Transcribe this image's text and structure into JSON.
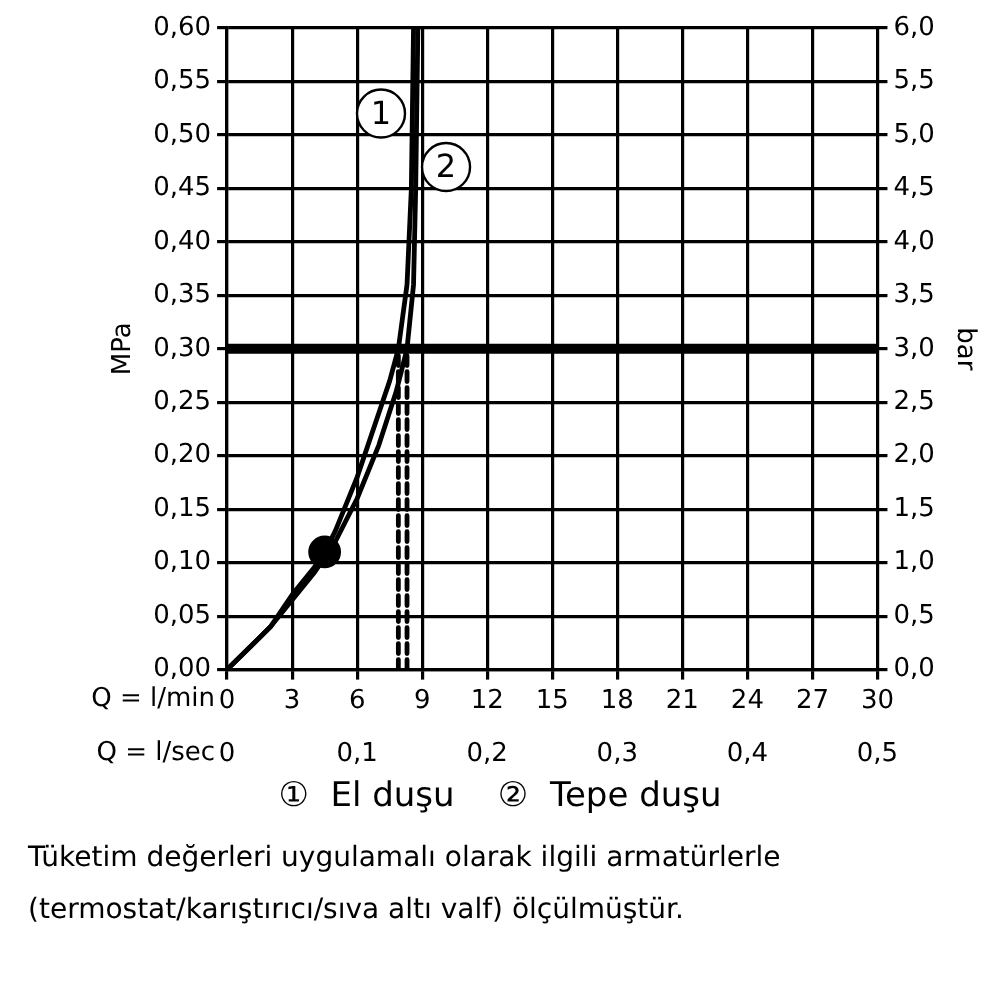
{
  "chart_data": {
    "type": "line",
    "ylabel": "MPa",
    "y2label": "bar",
    "xlabel": "Q = l/min",
    "x2label": "Q = l/sec",
    "xlim": [
      0,
      30
    ],
    "xticks": [
      0,
      3,
      6,
      9,
      12,
      15,
      18,
      21,
      24,
      27,
      30
    ],
    "x2lim": [
      0,
      0.5
    ],
    "x2ticks": [
      0,
      {
        "value": 0.1,
        "label": "0,1"
      },
      {
        "value": 0.2,
        "label": "0,2"
      },
      {
        "value": 0.3,
        "label": "0,3"
      },
      {
        "value": 0.4,
        "label": "0,4"
      },
      {
        "value": 0.5,
        "label": "0,5"
      }
    ],
    "ylim": [
      0,
      0.6
    ],
    "yticks": [
      {
        "value": 0,
        "label": "0,00"
      },
      {
        "value": 0.05,
        "label": "0,05"
      },
      {
        "value": 0.1,
        "label": "0,10"
      },
      {
        "value": 0.15,
        "label": "0,15"
      },
      {
        "value": 0.2,
        "label": "0,20"
      },
      {
        "value": 0.25,
        "label": "0,25"
      },
      {
        "value": 0.3,
        "label": "0,30"
      },
      {
        "value": 0.35,
        "label": "0,35"
      },
      {
        "value": 0.4,
        "label": "0,40"
      },
      {
        "value": 0.45,
        "label": "0,45"
      },
      {
        "value": 0.5,
        "label": "0,50"
      },
      {
        "value": 0.55,
        "label": "0,55"
      },
      {
        "value": 0.6,
        "label": "0,60"
      }
    ],
    "y2lim": [
      0,
      6
    ],
    "y2ticks": [
      {
        "value": 0,
        "label": "0,0"
      },
      {
        "value": 0.5,
        "label": "0,5"
      },
      {
        "value": 1,
        "label": "1,0"
      },
      {
        "value": 1.5,
        "label": "1,5"
      },
      {
        "value": 2,
        "label": "2,0"
      },
      {
        "value": 2.5,
        "label": "2,5"
      },
      {
        "value": 3,
        "label": "3,0"
      },
      {
        "value": 3.5,
        "label": "3,5"
      },
      {
        "value": 4,
        "label": "4,0"
      },
      {
        "value": 4.5,
        "label": "4,5"
      },
      {
        "value": 5,
        "label": "5,0"
      },
      {
        "value": 5.5,
        "label": "5,5"
      },
      {
        "value": 6,
        "label": "6,0"
      }
    ],
    "grid": true,
    "marker": "none",
    "series": [
      {
        "color": "#000000",
        "x": [
          0,
          1,
          2,
          3,
          4,
          4.5,
          5,
          6,
          7,
          7.5,
          7.9,
          8.3,
          8.5,
          8.6
        ],
        "values": [
          0,
          0.02,
          0.04,
          0.07,
          0.095,
          0.11,
          0.13,
          0.18,
          0.24,
          0.27,
          0.3,
          0.36,
          0.45,
          0.6
        ]
      },
      {
        "color": "#000000",
        "x": [
          0,
          1,
          2,
          3,
          4,
          4.5,
          5,
          6,
          7,
          7.8,
          8.3,
          8.6,
          8.7,
          8.8
        ],
        "values": [
          0,
          0.02,
          0.04,
          0.065,
          0.09,
          0.105,
          0.12,
          0.16,
          0.21,
          0.26,
          0.3,
          0.36,
          0.45,
          0.6
        ]
      },
      {
        "type": "scatter",
        "color": "#000000",
        "marker": "circle",
        "x": [
          4.5
        ],
        "values": [
          0.11
        ]
      },
      {
        "type": "line",
        "color": "#000000",
        "line_style": "dashed",
        "x": [
          7.9,
          7.9
        ],
        "values": [
          0,
          0.3
        ]
      },
      {
        "type": "line",
        "color": "#000000",
        "line_style": "dashed",
        "x": [
          8.3,
          8.3
        ],
        "values": [
          0,
          0.3
        ]
      }
    ],
    "ref_lines": [
      {
        "axis": "y",
        "value": 0.3,
        "color": "#000000"
      }
    ],
    "annotations": [
      {
        "text": "1",
        "x": 7.1,
        "y": 0.52
      },
      {
        "text": "2",
        "x": 10.1,
        "y": 0.47
      },
      "①  El duşu    ②  Tepe duşu",
      "Tüketim değerleri uygulamalı olarak ilgili armatürlerle",
      "(termostat/karıştırıcı/sıva altı valf) ölçülmüştür."
    ]
  }
}
